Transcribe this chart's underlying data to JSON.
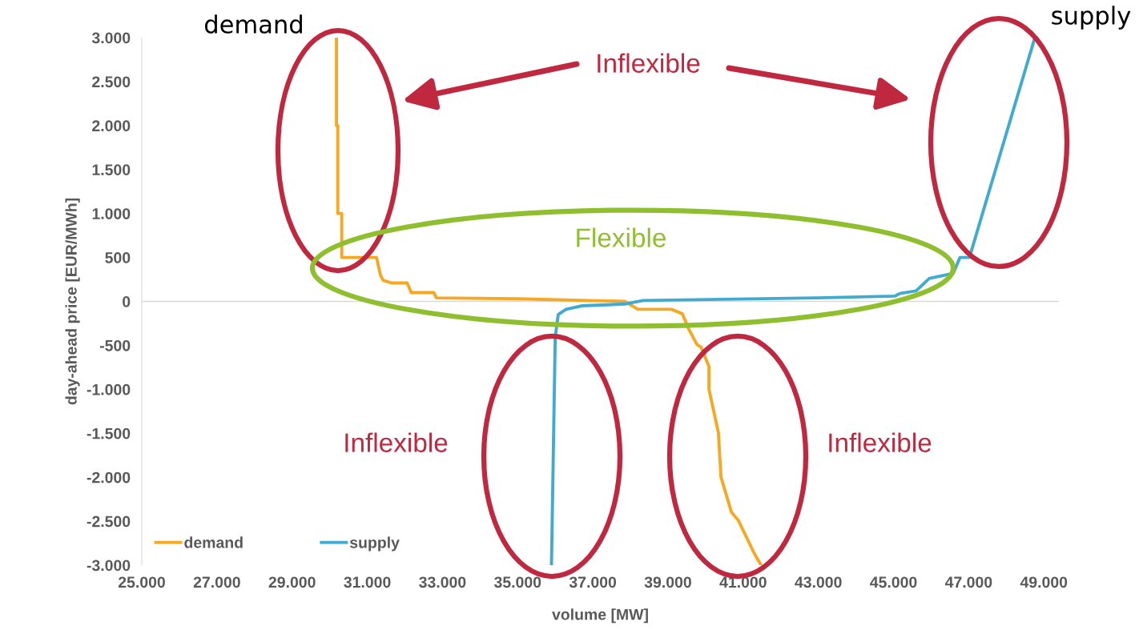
{
  "chart_data": {
    "type": "line",
    "xlabel": "volume [MW]",
    "ylabel": "day-ahead price [EUR/MWh]",
    "xlim": [
      25000,
      49400
    ],
    "xticks": [
      {
        "value": 25000,
        "label": "25.000"
      },
      {
        "value": 27000,
        "label": "27.000"
      },
      {
        "value": 29000,
        "label": "29.000"
      },
      {
        "value": 31000,
        "label": "31.000"
      },
      {
        "value": 33000,
        "label": "33.000"
      },
      {
        "value": 35000,
        "label": "35.000"
      },
      {
        "value": 37000,
        "label": "37.000"
      },
      {
        "value": 39000,
        "label": "39.000"
      },
      {
        "value": 41000,
        "label": "41.000"
      },
      {
        "value": 43000,
        "label": "43.000"
      },
      {
        "value": 45000,
        "label": "45.000"
      },
      {
        "value": 47000,
        "label": "47.000"
      },
      {
        "value": 49000,
        "label": "49.000"
      }
    ],
    "ylim": [
      -3000,
      3000
    ],
    "yticks": [
      {
        "value": -3000,
        "label": "-3.000"
      },
      {
        "value": -2500,
        "label": "-2.500"
      },
      {
        "value": -2000,
        "label": "-2.000"
      },
      {
        "value": -1500,
        "label": "-1.500"
      },
      {
        "value": -1000,
        "label": "-1.000"
      },
      {
        "value": -500,
        "label": "-500"
      },
      0,
      500,
      {
        "value": 1000,
        "label": "1.000"
      },
      {
        "value": 1500,
        "label": "1.500"
      },
      {
        "value": 2000,
        "label": "2.000"
      },
      {
        "value": 2500,
        "label": "2.500"
      },
      {
        "value": 3000,
        "label": "3.000"
      }
    ],
    "series": [
      {
        "name": "demand",
        "color": "#f7a823",
        "x": [
          30180,
          30180,
          30215,
          30215,
          30320,
          30320,
          31245,
          31350,
          31420,
          31635,
          32060,
          32170,
          32770,
          32840,
          35010,
          37850,
          38200,
          39090,
          39380,
          39560,
          39770,
          39880,
          40090,
          40090,
          40340,
          40410,
          40690,
          40870,
          41300,
          41475
        ],
        "values": [
          3000,
          2000,
          2000,
          1000,
          1000,
          500,
          500,
          300,
          240,
          210,
          210,
          100,
          100,
          40,
          30,
          0,
          -90,
          -90,
          -140,
          -320,
          -490,
          -520,
          -740,
          -1000,
          -1490,
          -2000,
          -2400,
          -2490,
          -2870,
          -3000
        ]
      },
      {
        "name": "supply",
        "color": "#41aad0",
        "x": [
          35900,
          36000,
          36080,
          36080,
          36290,
          36720,
          37850,
          38340,
          42970,
          45030,
          45170,
          45600,
          45950,
          46590,
          46770,
          47020,
          48760
        ],
        "values": [
          -3000,
          -400,
          -150,
          -150,
          -90,
          -50,
          -30,
          10,
          40,
          60,
          90,
          120,
          260,
          320,
          500,
          500,
          3000
        ]
      }
    ],
    "ref_lines": [
      {
        "axis": "y",
        "value": 0,
        "color": "#d9d9d9"
      }
    ],
    "legend": "bottom left",
    "grid": false,
    "marker": "none",
    "line_style": "solid",
    "annotations": [
      "demand",
      "supply",
      "Inflexible",
      "Flexible",
      "Inflexible",
      "Inflexible"
    ]
  }
}
